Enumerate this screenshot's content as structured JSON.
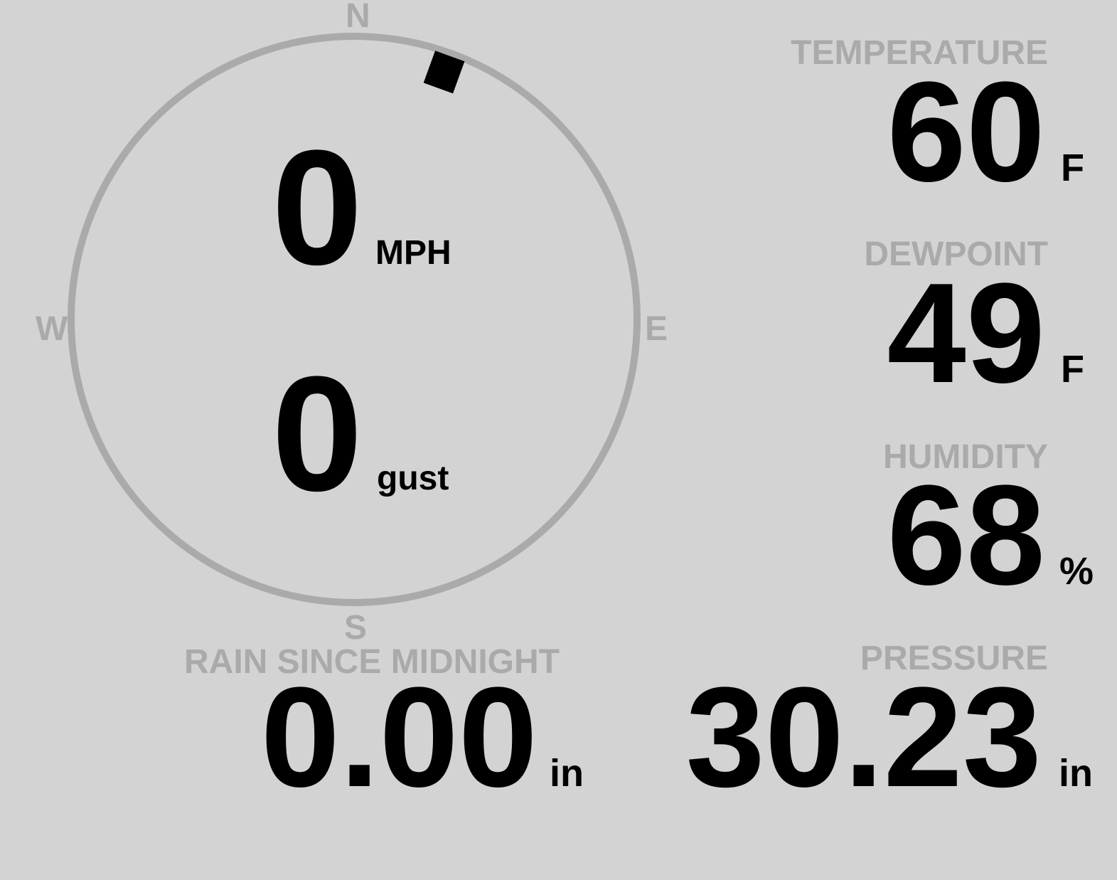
{
  "wind": {
    "speed": "0",
    "speed_unit": "MPH",
    "gust": "0",
    "gust_unit": "gust",
    "direction_degrees": 20,
    "compass": {
      "n": "N",
      "e": "E",
      "s": "S",
      "w": "W"
    }
  },
  "temperature": {
    "label": "TEMPERATURE",
    "value": "60",
    "unit": "F"
  },
  "dewpoint": {
    "label": "DEWPOINT",
    "value": "49",
    "unit": "F"
  },
  "humidity": {
    "label": "HUMIDITY",
    "value": "68",
    "unit": "%"
  },
  "rain": {
    "label": "RAIN SINCE MIDNIGHT",
    "value": "0.00",
    "unit": "in"
  },
  "pressure": {
    "label": "PRESSURE",
    "value": "30.23",
    "unit": "in"
  },
  "colors": {
    "background": "#d3d3d3",
    "label": "#aaaaaa",
    "value": "#000000",
    "dial": "#aaaaaa"
  }
}
